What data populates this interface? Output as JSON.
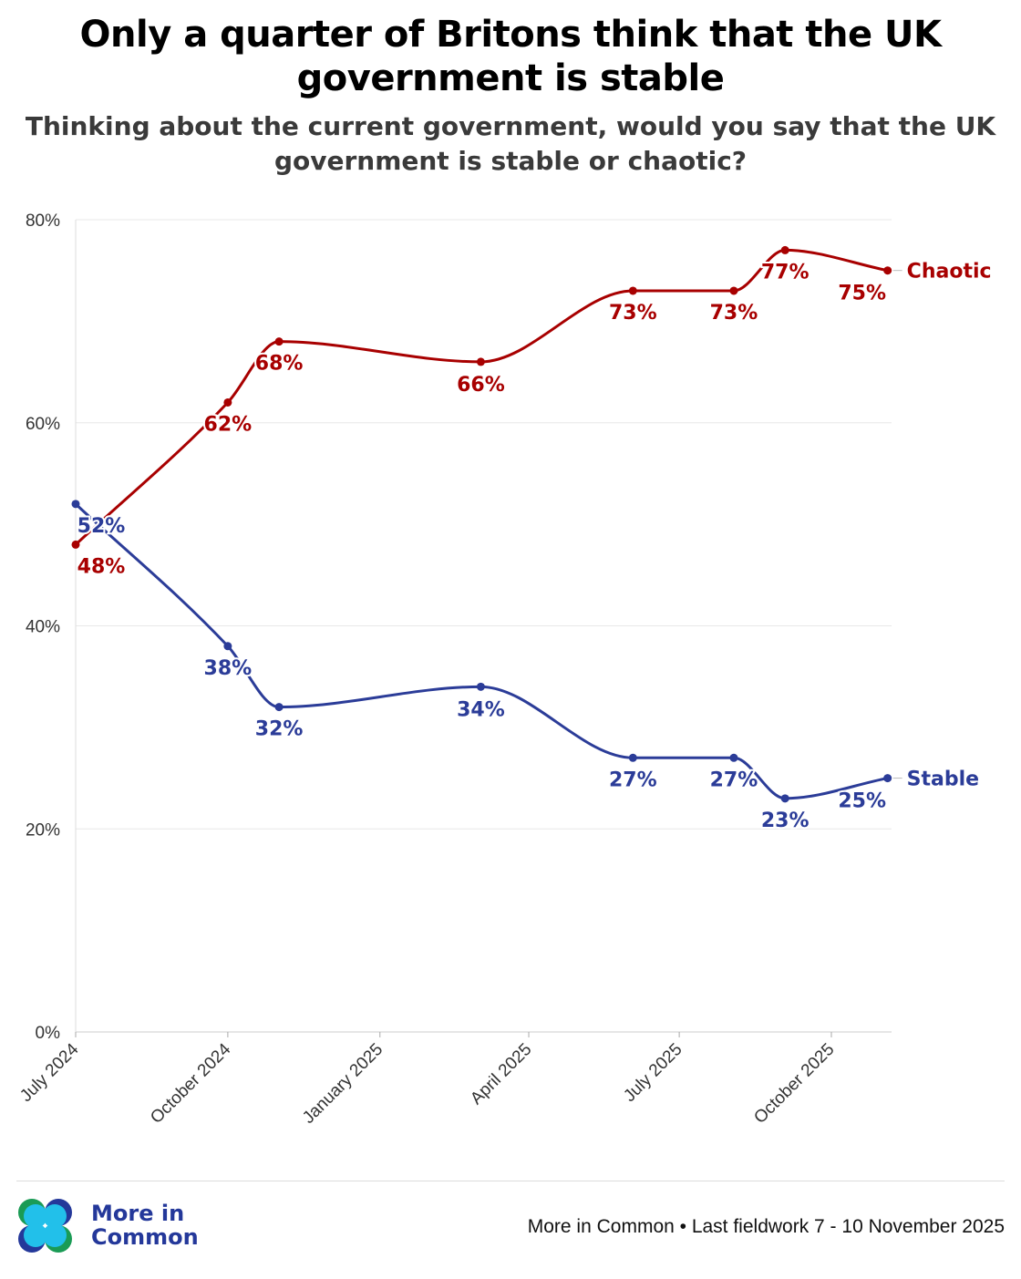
{
  "title": "Only a quarter of Britons think that the UK government is stable",
  "subtitle": "Thinking about the current government, would you say that the UK government is stable or chaotic?",
  "footer": {
    "source": "More in Common • Last fieldwork 7 - 10 November 2025",
    "logo_text_1": "More in",
    "logo_text_2": "Common"
  },
  "colors": {
    "chaotic": "#a80000",
    "stable": "#2b3c98",
    "grid": "#e8e8e8"
  },
  "chart_data": {
    "type": "line",
    "title": "Only a quarter of Britons think that the UK government is stable",
    "xlabel": "",
    "ylabel": "",
    "ylim": [
      0,
      80
    ],
    "yticks": [
      0,
      20,
      40,
      60,
      80
    ],
    "ytick_labels": [
      "0%",
      "20%",
      "40%",
      "60%",
      "80%"
    ],
    "xticks": [
      "2024-07-01",
      "2024-10-01",
      "2025-01-01",
      "2025-04-01",
      "2025-07-01",
      "2025-10-01"
    ],
    "xtick_labels": [
      "July 2024",
      "October 2024",
      "January 2025",
      "April 2025",
      "July 2025",
      "October 2025"
    ],
    "x": [
      "2024-07-01",
      "2024-10-01",
      "2024-11-01",
      "2025-03-03",
      "2025-06-03",
      "2025-08-03",
      "2025-09-03",
      "2025-11-04"
    ],
    "grid": true,
    "legend": "direct labels at line ends (right)",
    "series": [
      {
        "name": "Chaotic",
        "key": "chaotic",
        "values": [
          48,
          62,
          68,
          66,
          73,
          73,
          77,
          75
        ],
        "labels": [
          "48%",
          "62%",
          "68%",
          "66%",
          "73%",
          "73%",
          "77%",
          "75%"
        ]
      },
      {
        "name": "Stable",
        "key": "stable",
        "values": [
          52,
          38,
          32,
          34,
          27,
          27,
          23,
          25
        ],
        "labels": [
          "52%",
          "38%",
          "32%",
          "34%",
          "27%",
          "27%",
          "23%",
          "25%"
        ]
      }
    ]
  }
}
